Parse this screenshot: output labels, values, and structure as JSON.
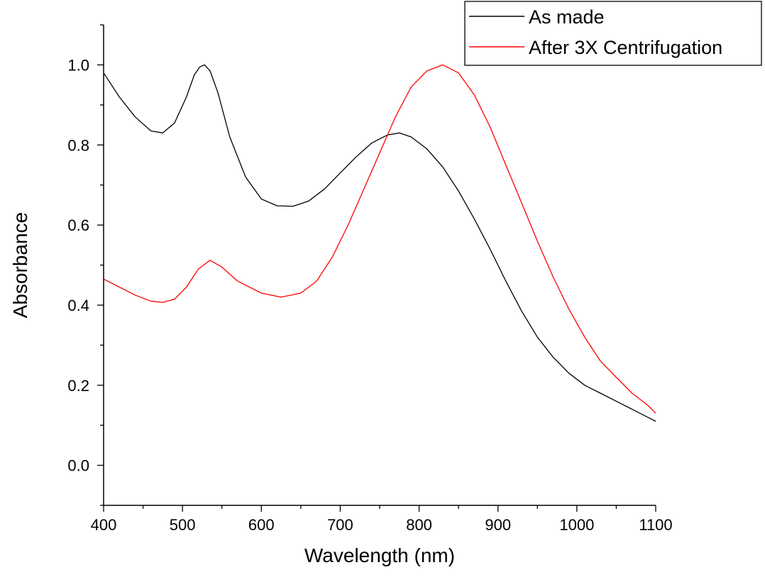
{
  "chart_data": {
    "type": "line",
    "xlabel": "Wavelength (nm)",
    "ylabel": "Absorbance",
    "xlim": [
      400,
      1100
    ],
    "ylim": [
      -0.1,
      1.1
    ],
    "xticks": [
      400,
      500,
      600,
      700,
      800,
      900,
      1000,
      1100
    ],
    "xtick_labels": [
      "400",
      "500",
      "600",
      "700",
      "800",
      "900",
      "1000",
      "1100"
    ],
    "yticks": [
      0.0,
      0.2,
      0.4,
      0.6,
      0.8,
      1.0
    ],
    "ytick_labels": [
      "0.0",
      "0.2",
      "0.4",
      "0.6",
      "0.8",
      "1.0"
    ],
    "grid": false,
    "legend": "top-right",
    "series": [
      {
        "name": "As made",
        "color": "#000000",
        "x": [
          400,
          420,
          440,
          460,
          475,
          490,
          505,
          515,
          522,
          528,
          535,
          545,
          560,
          580,
          600,
          620,
          640,
          660,
          680,
          700,
          720,
          740,
          760,
          775,
          790,
          810,
          830,
          850,
          870,
          890,
          910,
          930,
          950,
          970,
          990,
          1010,
          1030,
          1050,
          1070,
          1090,
          1100
        ],
        "y": [
          0.98,
          0.92,
          0.87,
          0.835,
          0.83,
          0.855,
          0.92,
          0.975,
          0.995,
          1.0,
          0.985,
          0.93,
          0.82,
          0.72,
          0.665,
          0.648,
          0.647,
          0.66,
          0.69,
          0.73,
          0.77,
          0.805,
          0.825,
          0.83,
          0.82,
          0.79,
          0.745,
          0.685,
          0.615,
          0.54,
          0.46,
          0.385,
          0.32,
          0.27,
          0.23,
          0.2,
          0.18,
          0.16,
          0.14,
          0.12,
          0.11
        ]
      },
      {
        "name": "After 3X Centrifugation",
        "color": "#ff0000",
        "x": [
          400,
          420,
          440,
          460,
          475,
          490,
          505,
          520,
          535,
          550,
          570,
          600,
          625,
          650,
          670,
          690,
          710,
          730,
          750,
          770,
          790,
          810,
          830,
          850,
          870,
          890,
          910,
          930,
          950,
          970,
          990,
          1010,
          1030,
          1050,
          1070,
          1090,
          1100
        ],
        "y": [
          0.465,
          0.445,
          0.425,
          0.41,
          0.407,
          0.415,
          0.445,
          0.49,
          0.512,
          0.495,
          0.46,
          0.43,
          0.42,
          0.43,
          0.46,
          0.52,
          0.6,
          0.69,
          0.78,
          0.87,
          0.945,
          0.985,
          1.0,
          0.98,
          0.925,
          0.845,
          0.75,
          0.655,
          0.56,
          0.47,
          0.39,
          0.32,
          0.26,
          0.22,
          0.18,
          0.15,
          0.13
        ]
      }
    ]
  }
}
